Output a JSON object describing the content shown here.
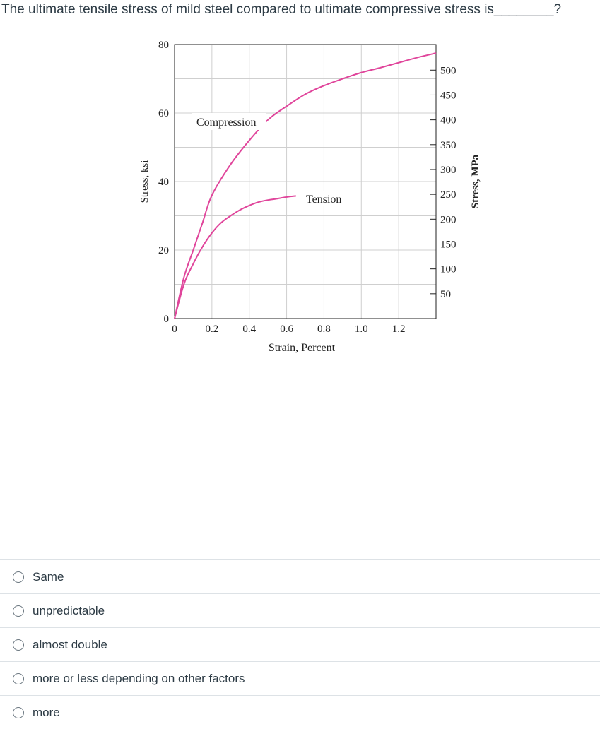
{
  "question": {
    "text": "The ultimate tensile stress of mild steel compared to ultimate compressive stress is________?"
  },
  "chart_data": {
    "type": "line",
    "xlabel": "Strain, Percent",
    "ylabel": "Stress, ksi",
    "ylabel_right": "Stress, MPa",
    "xlim": [
      0,
      1.4
    ],
    "ylim": [
      0,
      80
    ],
    "x_ticks": [
      "0",
      "0.2",
      "0.4",
      "0.6",
      "0.8",
      "1.0",
      "1.2"
    ],
    "y_ticks": [
      "0",
      "20",
      "40",
      "60",
      "80"
    ],
    "right_ticks": [
      "50",
      "100",
      "150",
      "200",
      "250",
      "300",
      "350",
      "400",
      "450",
      "500"
    ],
    "grid": true,
    "line_color": "#e0459b",
    "series": [
      {
        "name": "Compression",
        "x": [
          0,
          0.05,
          0.1,
          0.15,
          0.2,
          0.3,
          0.4,
          0.5,
          0.6,
          0.7,
          0.8,
          0.9,
          1.0,
          1.1,
          1.2,
          1.3,
          1.4
        ],
        "y": [
          0,
          12,
          20,
          28,
          36,
          45,
          52,
          58,
          62,
          65.5,
          68,
          70,
          71.8,
          73.2,
          74.7,
          76.2,
          77.5
        ]
      },
      {
        "name": "Tension",
        "x": [
          0,
          0.05,
          0.1,
          0.15,
          0.2,
          0.25,
          0.3,
          0.35,
          0.4,
          0.45,
          0.5,
          0.55,
          0.6,
          0.65
        ],
        "y": [
          0,
          10,
          16,
          21,
          25,
          28,
          30,
          31.7,
          33,
          34,
          34.6,
          35,
          35.5,
          35.8
        ]
      }
    ]
  },
  "answers": [
    {
      "label": "Same"
    },
    {
      "label": "unpredictable"
    },
    {
      "label": "almost double"
    },
    {
      "label": "more or less depending on other factors"
    },
    {
      "label": "more"
    }
  ]
}
